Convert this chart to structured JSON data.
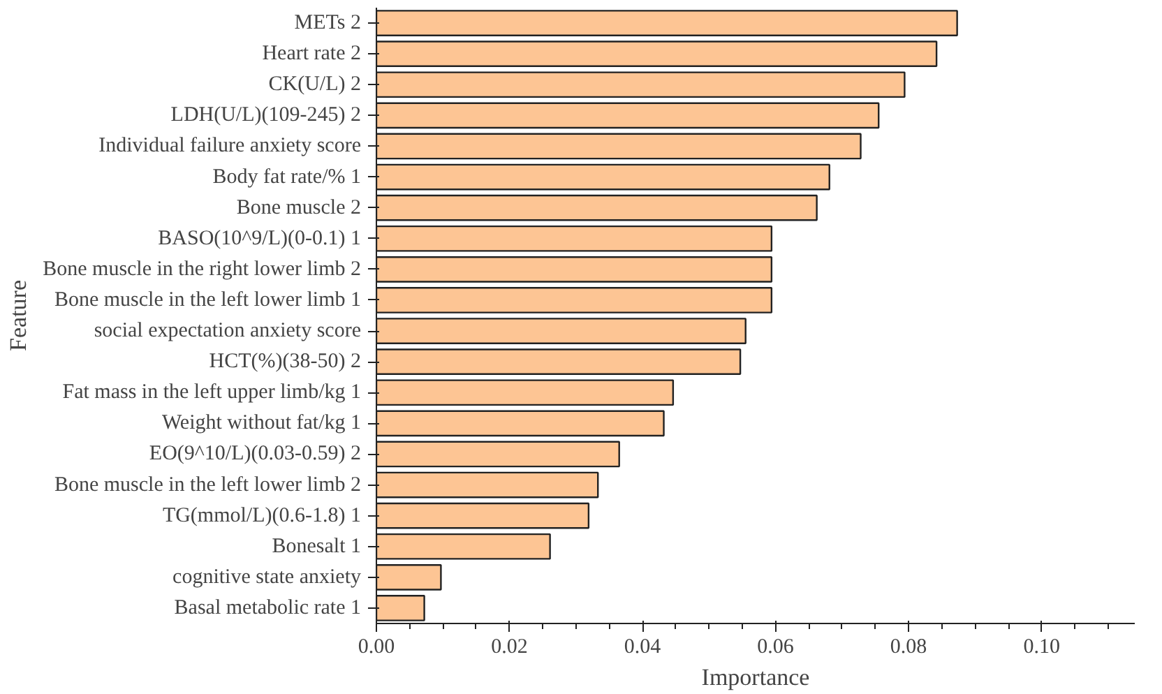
{
  "chart_data": {
    "type": "bar",
    "orientation": "horizontal",
    "xlabel": "Importance",
    "ylabel": "Feature",
    "categories": [
      "METs 2",
      "Heart rate 2",
      "CK(U/L) 2",
      "LDH(U/L)(109-245) 2",
      "Individual failure anxiety score",
      "Body fat rate/% 1",
      "Bone muscle 2",
      "BASO(10^9/L)(0-0.1) 1",
      "Bone muscle in the right lower limb 2",
      "Bone muscle in the left lower limb 1",
      "social expectation anxiety score",
      "HCT(%)(38-50) 2",
      "Fat mass in the left upper limb/kg 1",
      "Weight without fat/kg 1",
      "EO(9^10/L)(0.03-0.59) 2",
      "Bone muscle in the left lower limb 2",
      "TG(mmol/L)(0.6-1.8) 1",
      "Bonesalt 1",
      "cognitive state anxiety",
      "Basal metabolic rate 1"
    ],
    "series": [
      {
        "color": "#fdc594",
        "values": [
          0.0873,
          0.0842,
          0.0794,
          0.0755,
          0.0728,
          0.0681,
          0.0662,
          0.0594,
          0.0594,
          0.0594,
          0.0555,
          0.0547,
          0.0446,
          0.0432,
          0.0365,
          0.0333,
          0.0319,
          0.0261,
          0.0097,
          0.0072
        ]
      }
    ],
    "xlim": [
      0,
      0.114
    ],
    "xticks": [
      {
        "value": 0,
        "label": "0.00"
      },
      {
        "value": 0.02,
        "label": "0.02"
      },
      {
        "value": 0.04,
        "label": "0.04"
      },
      {
        "value": 0.06,
        "label": "0.06"
      },
      {
        "value": 0.08,
        "label": "0.08"
      },
      {
        "value": 0.1,
        "label": "0.10"
      }
    ]
  }
}
